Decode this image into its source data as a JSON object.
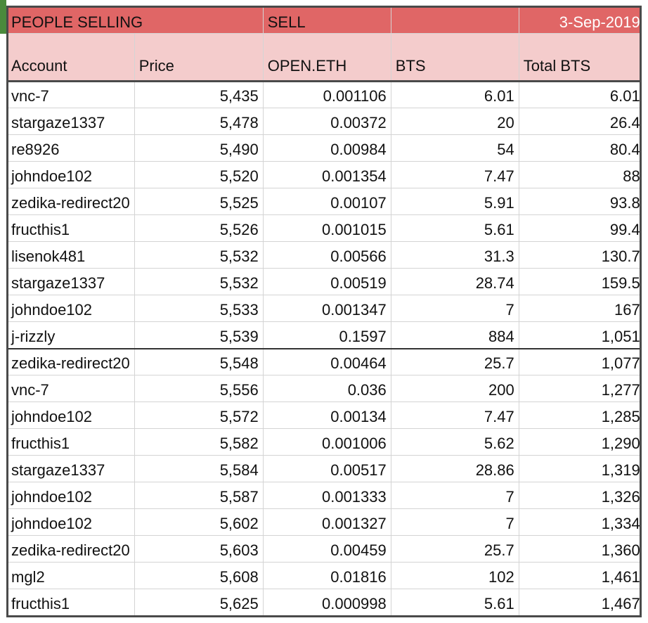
{
  "title_row": {
    "left": "PEOPLE SELLING",
    "middle": "SELL",
    "date": "3-Sep-2019"
  },
  "headers": {
    "account": "Account",
    "price": "Price",
    "open_eth": "OPEN.ETH",
    "bts": "BTS",
    "total_bts": "Total BTS"
  },
  "colors": {
    "title_bg": "#e06666",
    "header_bg": "#f4cccc",
    "date_text": "#ffffff"
  },
  "rows": [
    {
      "account": "vnc-7",
      "price": "5,435",
      "open_eth": "0.001106",
      "bts": "6.01",
      "total": "6.01"
    },
    {
      "account": "stargaze1337",
      "price": "5,478",
      "open_eth": "0.00372",
      "bts": "20",
      "total": "26.4"
    },
    {
      "account": "re8926",
      "price": "5,490",
      "open_eth": "0.00984",
      "bts": "54",
      "total": "80.4"
    },
    {
      "account": "johndoe102",
      "price": "5,520",
      "open_eth": "0.001354",
      "bts": "7.47",
      "total": "88"
    },
    {
      "account": "zedika-redirect20",
      "price": "5,525",
      "open_eth": "0.00107",
      "bts": "5.91",
      "total": "93.8"
    },
    {
      "account": "fructhis1",
      "price": "5,526",
      "open_eth": "0.001015",
      "bts": "5.61",
      "total": "99.4"
    },
    {
      "account": "lisenok481",
      "price": "5,532",
      "open_eth": "0.00566",
      "bts": "31.3",
      "total": "130.7"
    },
    {
      "account": "stargaze1337",
      "price": "5,532",
      "open_eth": "0.00519",
      "bts": "28.74",
      "total": "159.5"
    },
    {
      "account": "johndoe102",
      "price": "5,533",
      "open_eth": "0.001347",
      "bts": "7",
      "total": "167"
    },
    {
      "account": "j-rizzly",
      "price": "5,539",
      "open_eth": "0.1597",
      "bts": "884",
      "total": "1,051"
    },
    {
      "account": "zedika-redirect20",
      "price": "5,548",
      "open_eth": "0.00464",
      "bts": "25.7",
      "total": "1,077"
    },
    {
      "account": "vnc-7",
      "price": "5,556",
      "open_eth": "0.036",
      "bts": "200",
      "total": "1,277"
    },
    {
      "account": "johndoe102",
      "price": "5,572",
      "open_eth": "0.00134",
      "bts": "7.47",
      "total": "1,285"
    },
    {
      "account": "fructhis1",
      "price": "5,582",
      "open_eth": "0.001006",
      "bts": "5.62",
      "total": "1,290"
    },
    {
      "account": "stargaze1337",
      "price": "5,584",
      "open_eth": "0.00517",
      "bts": "28.86",
      "total": "1,319"
    },
    {
      "account": "johndoe102",
      "price": "5,587",
      "open_eth": "0.001333",
      "bts": "7",
      "total": "1,326"
    },
    {
      "account": "johndoe102",
      "price": "5,602",
      "open_eth": "0.001327",
      "bts": "7",
      "total": "1,334"
    },
    {
      "account": "zedika-redirect20",
      "price": "5,603",
      "open_eth": "0.00459",
      "bts": "25.7",
      "total": "1,360"
    },
    {
      "account": "mgl2",
      "price": "5,608",
      "open_eth": "0.01816",
      "bts": "102",
      "total": "1,461"
    },
    {
      "account": "fructhis1",
      "price": "5,625",
      "open_eth": "0.000998",
      "bts": "5.61",
      "total": "1,467"
    }
  ]
}
